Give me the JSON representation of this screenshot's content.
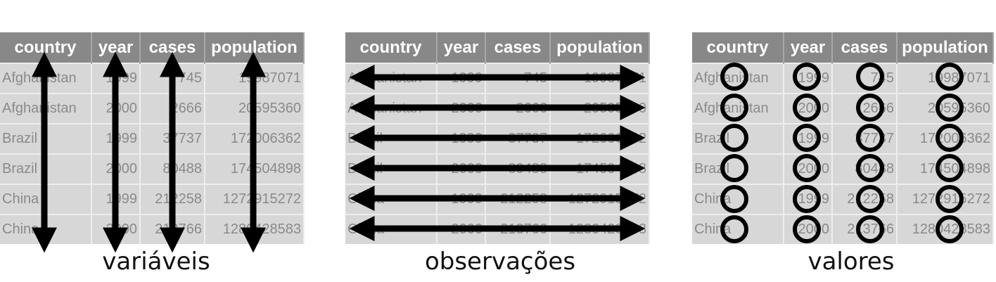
{
  "headers": [
    "country",
    "year",
    "cases",
    "population"
  ],
  "rows": [
    [
      "Afghanistan",
      "1999",
      "745",
      "19987071"
    ],
    [
      "Afghanistan",
      "2000",
      "2666",
      "20595360"
    ],
    [
      "Brazil",
      "1999",
      "37737",
      "172006362"
    ],
    [
      "Brazil",
      "2000",
      "80488",
      "174504898"
    ],
    [
      "China",
      "1999",
      "212258",
      "1272915272"
    ],
    [
      "China",
      "2000",
      "213766",
      "1280428583"
    ]
  ],
  "panels": [
    {
      "caption": "variáveis",
      "marker": "vertical-arrows"
    },
    {
      "caption": "observações",
      "marker": "horizontal-arrows"
    },
    {
      "caption": "valores",
      "marker": "circles"
    }
  ],
  "colors": {
    "header_bg": "#888888",
    "cell_bg": "#d7d7d7",
    "marker": "#000000"
  }
}
